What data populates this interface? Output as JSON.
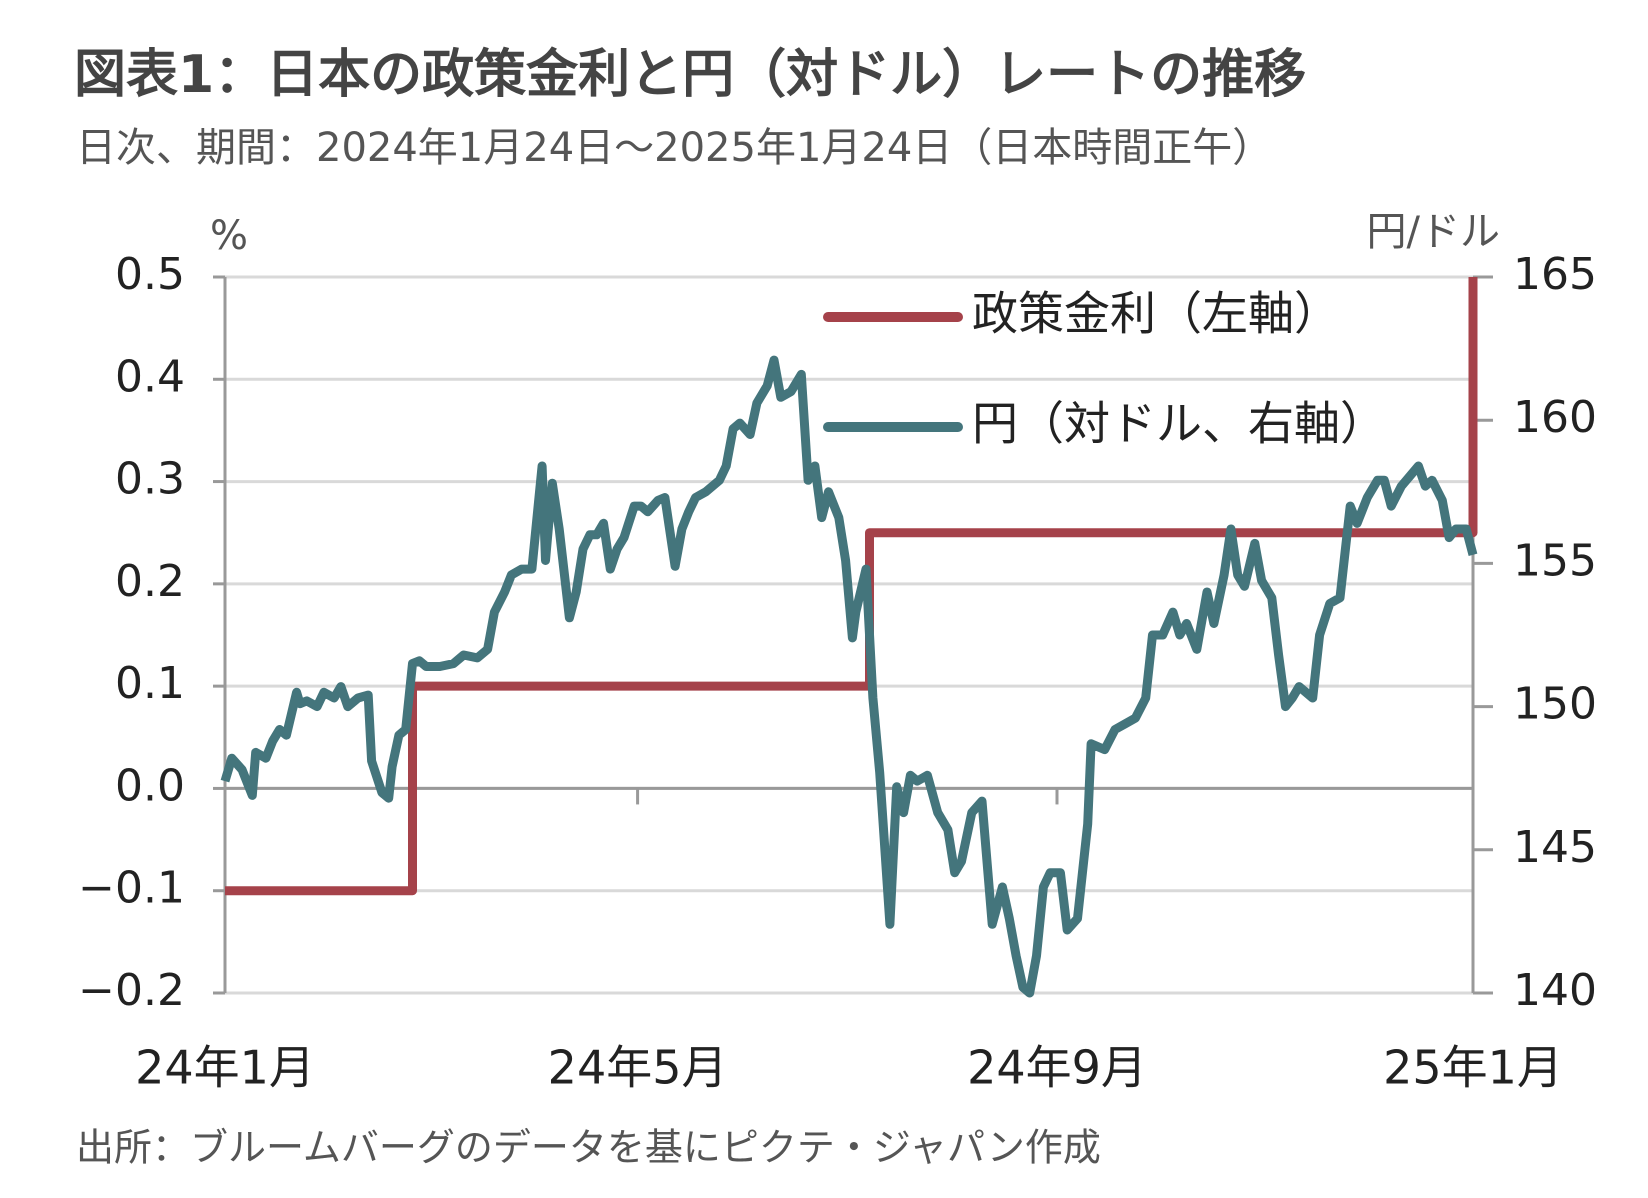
{
  "chart_data": {
    "type": "line",
    "title": "図表1：日本の政策金利と円（対ドル）レートの推移",
    "subtitle": "日次、期間：2024年1月24日～2025年1月24日（日本時間正午）",
    "y_label": "%",
    "y2_label": "円/ドル",
    "source": "出所：ブルームバーグのデータを基にピクテ・ジャパン作成",
    "xlim": [
      0,
      366
    ],
    "xticks": [
      {
        "value": 0,
        "label": "24年1月"
      },
      {
        "value": 121,
        "label": "24年5月"
      },
      {
        "value": 244,
        "label": "24年9月"
      },
      {
        "value": 366,
        "label": "25年1月"
      }
    ],
    "ylim": [
      -0.2,
      0.5
    ],
    "yticks": [
      {
        "value": -0.2,
        "label": "−0.2"
      },
      {
        "value": -0.1,
        "label": "−0.1"
      },
      {
        "value": 0,
        "label": "0.0"
      },
      0.1,
      0.2,
      0.3,
      0.4,
      0.5
    ],
    "y2lim": [
      140,
      165
    ],
    "y2ticks": [
      140,
      145,
      150,
      155,
      160,
      165
    ],
    "grid": true,
    "legend": "upper right",
    "series": [
      {
        "name": "政策金利（左軸）",
        "color": "#a5424a",
        "axis": "y",
        "x": [
          0,
          55,
          55,
          189,
          189,
          366,
          366
        ],
        "values": [
          -0.1,
          -0.1,
          0.1,
          0.1,
          0.25,
          0.25,
          0.5
        ]
      },
      {
        "name": "円（対ドル、右軸）",
        "color": "#44757c",
        "axis": "y2",
        "x": [
          0,
          2,
          5,
          8,
          9,
          12,
          14,
          16,
          18,
          21,
          22,
          24,
          27,
          29,
          32,
          34,
          36,
          39,
          42,
          43,
          46,
          48,
          49,
          51,
          53,
          55,
          57,
          59,
          63,
          67,
          70,
          74,
          77,
          79,
          82,
          84,
          87,
          90,
          93,
          94,
          96,
          98,
          101,
          103,
          105,
          107,
          109,
          111,
          113,
          115,
          117,
          120,
          122,
          124,
          127,
          129,
          132,
          134,
          136,
          138,
          141,
          145,
          147,
          149,
          151,
          154,
          156,
          159,
          161,
          163,
          166,
          169,
          171,
          173,
          175,
          177,
          180,
          182,
          184,
          185,
          188,
          190,
          192,
          195,
          197,
          199,
          201,
          203,
          206,
          209,
          212,
          214,
          216,
          219,
          222,
          225,
          228,
          230,
          232,
          234,
          236,
          238,
          240,
          242,
          245,
          247,
          250,
          253,
          254,
          258,
          261,
          264,
          267,
          270,
          272,
          275,
          278,
          280,
          282,
          285,
          288,
          290,
          293,
          295,
          297,
          299,
          302,
          304,
          307,
          309,
          311,
          313,
          315,
          319,
          321,
          324,
          327,
          330,
          332,
          335,
          338,
          340,
          342,
          345,
          350,
          352,
          354,
          357,
          359,
          361,
          364,
          366
        ],
        "values": [
          147.4,
          148.2,
          147.8,
          146.9,
          148.4,
          148.2,
          148.8,
          149.2,
          149.0,
          150.5,
          150.1,
          150.2,
          150.0,
          150.5,
          150.3,
          150.7,
          150.0,
          150.3,
          150.4,
          148.1,
          147.0,
          146.8,
          147.9,
          149.0,
          149.2,
          151.5,
          151.6,
          151.4,
          151.4,
          151.5,
          151.8,
          151.7,
          152.0,
          153.3,
          154.0,
          154.6,
          154.8,
          154.8,
          158.4,
          155.1,
          157.8,
          156.2,
          153.1,
          154.0,
          155.5,
          156.0,
          156.0,
          156.4,
          154.8,
          155.5,
          155.9,
          157.0,
          157.0,
          156.8,
          157.2,
          157.3,
          154.9,
          156.2,
          156.8,
          157.3,
          157.5,
          157.9,
          158.4,
          159.7,
          159.9,
          159.5,
          160.6,
          161.2,
          162.1,
          160.8,
          161.0,
          161.6,
          157.9,
          158.4,
          156.6,
          157.5,
          156.6,
          155.1,
          152.4,
          153.3,
          154.8,
          150.3,
          147.7,
          142.4,
          147.2,
          146.3,
          147.6,
          147.4,
          147.6,
          146.3,
          145.7,
          144.2,
          144.6,
          146.3,
          146.7,
          142.4,
          143.7,
          142.6,
          141.3,
          140.2,
          140.0,
          141.3,
          143.7,
          144.2,
          144.2,
          142.2,
          142.6,
          145.9,
          148.7,
          148.5,
          149.2,
          149.4,
          149.6,
          150.3,
          152.5,
          152.5,
          153.3,
          152.5,
          152.9,
          152.0,
          154.0,
          152.9,
          154.6,
          156.2,
          154.6,
          154.2,
          155.7,
          154.4,
          153.8,
          151.8,
          150.0,
          150.3,
          150.7,
          150.3,
          152.5,
          153.6,
          153.8,
          157.0,
          156.4,
          157.3,
          157.9,
          157.9,
          157.0,
          157.7,
          158.4,
          157.7,
          157.9,
          157.2,
          155.9,
          156.2,
          156.2,
          155.3
        ]
      }
    ]
  }
}
